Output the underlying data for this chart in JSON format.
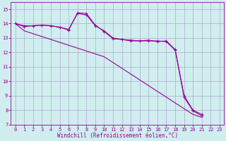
{
  "x": [
    0,
    1,
    2,
    3,
    4,
    5,
    6,
    7,
    8,
    9,
    10,
    11,
    12,
    13,
    14,
    15,
    16,
    17,
    18,
    19,
    20,
    21,
    22,
    23
  ],
  "line1": [
    14.0,
    13.8,
    13.85,
    13.9,
    13.85,
    13.75,
    13.6,
    14.7,
    14.6,
    13.85,
    13.5,
    13.0,
    12.9,
    12.85,
    12.8,
    12.85,
    12.75,
    12.8,
    12.2,
    9.0,
    8.0,
    7.7,
    null,
    null
  ],
  "line2": [
    14.0,
    13.85,
    13.85,
    13.9,
    13.85,
    13.75,
    13.55,
    14.75,
    14.7,
    13.9,
    13.45,
    12.95,
    12.9,
    12.8,
    12.8,
    12.8,
    12.8,
    12.75,
    12.15,
    8.9,
    7.95,
    7.6,
    null,
    null
  ],
  "line3": [
    14.0,
    13.5,
    13.3,
    13.1,
    12.9,
    12.7,
    12.5,
    12.3,
    12.1,
    11.9,
    11.7,
    11.3,
    10.9,
    10.5,
    10.1,
    9.7,
    9.3,
    8.9,
    8.5,
    8.1,
    7.7,
    7.5,
    null,
    null
  ],
  "color": "#990099",
  "bg_color": "#d0eeee",
  "grid_color": "#aaaacc",
  "xlabel": "Windchill (Refroidissement éolien,°C)",
  "ylim": [
    7,
    15.5
  ],
  "xlim": [
    -0.5,
    23.5
  ],
  "yticks": [
    7,
    8,
    9,
    10,
    11,
    12,
    13,
    14,
    15
  ],
  "xticks": [
    0,
    1,
    2,
    3,
    4,
    5,
    6,
    7,
    8,
    9,
    10,
    11,
    12,
    13,
    14,
    15,
    16,
    17,
    18,
    19,
    20,
    21,
    22,
    23
  ],
  "tick_fontsize": 5.0,
  "xlabel_fontsize": 5.5,
  "linewidth": 0.8,
  "marker_size": 3.5
}
